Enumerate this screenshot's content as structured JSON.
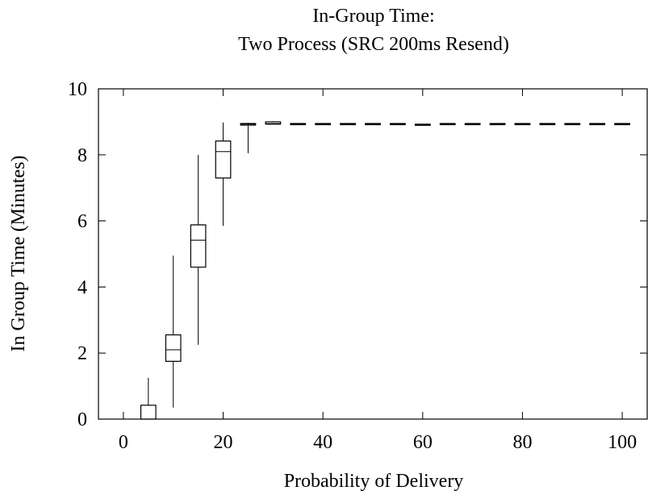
{
  "chart_data": {
    "type": "box",
    "title": [
      "In-Group Time:",
      "Two Process (SRC 200ms Resend)"
    ],
    "xlabel": "Probability of Delivery",
    "ylabel": "In Group Time (Minutes)",
    "xlim": [
      -5,
      105
    ],
    "ylim": [
      0,
      10
    ],
    "xticks": [
      0,
      20,
      40,
      60,
      80,
      100
    ],
    "yticks": [
      0,
      2,
      4,
      6,
      8,
      10
    ],
    "box_width": 3,
    "boxes": [
      {
        "x": 5,
        "min": 0,
        "q1": 0,
        "median": 0,
        "q3": 0.42,
        "max": 1.25
      },
      {
        "x": 10,
        "min": 0.35,
        "q1": 1.75,
        "median": 2.1,
        "q3": 2.55,
        "max": 4.95
      },
      {
        "x": 15,
        "min": 2.25,
        "q1": 4.6,
        "median": 5.42,
        "q3": 5.88,
        "max": 8.0
      },
      {
        "x": 20,
        "min": 5.85,
        "q1": 7.3,
        "median": 8.1,
        "q3": 8.42,
        "max": 8.98
      },
      {
        "x": 25,
        "min": 8.05,
        "q1": 8.9,
        "median": 8.93,
        "q3": 8.95,
        "max": 8.97
      },
      {
        "x": 30,
        "min": 8.93,
        "q1": 8.93,
        "median": 8.95,
        "q3": 9.0,
        "max": 9.02
      },
      {
        "x": 35,
        "min": 8.92,
        "q1": 8.92,
        "median": 8.93,
        "q3": 8.95,
        "max": 8.96
      },
      {
        "x": 40,
        "min": 8.92,
        "q1": 8.92,
        "median": 8.93,
        "q3": 8.95,
        "max": 8.96
      },
      {
        "x": 45,
        "min": 8.92,
        "q1": 8.92,
        "median": 8.93,
        "q3": 8.95,
        "max": 8.96
      },
      {
        "x": 50,
        "min": 8.92,
        "q1": 8.92,
        "median": 8.93,
        "q3": 8.95,
        "max": 8.96
      },
      {
        "x": 55,
        "min": 8.92,
        "q1": 8.92,
        "median": 8.93,
        "q3": 8.95,
        "max": 8.96
      },
      {
        "x": 60,
        "min": 8.91,
        "q1": 8.91,
        "median": 8.92,
        "q3": 8.93,
        "max": 8.94
      },
      {
        "x": 65,
        "min": 8.92,
        "q1": 8.92,
        "median": 8.93,
        "q3": 8.95,
        "max": 8.96
      },
      {
        "x": 70,
        "min": 8.92,
        "q1": 8.92,
        "median": 8.93,
        "q3": 8.95,
        "max": 8.96
      },
      {
        "x": 75,
        "min": 8.92,
        "q1": 8.92,
        "median": 8.93,
        "q3": 8.95,
        "max": 8.96
      },
      {
        "x": 80,
        "min": 8.92,
        "q1": 8.92,
        "median": 8.93,
        "q3": 8.95,
        "max": 8.96
      },
      {
        "x": 85,
        "min": 8.92,
        "q1": 8.92,
        "median": 8.93,
        "q3": 8.95,
        "max": 8.96
      },
      {
        "x": 90,
        "min": 8.92,
        "q1": 8.92,
        "median": 8.93,
        "q3": 8.95,
        "max": 8.96
      },
      {
        "x": 95,
        "min": 8.92,
        "q1": 8.92,
        "median": 8.93,
        "q3": 8.95,
        "max": 8.96
      },
      {
        "x": 100,
        "min": 8.92,
        "q1": 8.92,
        "median": 8.93,
        "q3": 8.95,
        "max": 8.96
      }
    ],
    "grid": false,
    "colors": {
      "line": "#000000",
      "background": "#ffffff"
    }
  }
}
